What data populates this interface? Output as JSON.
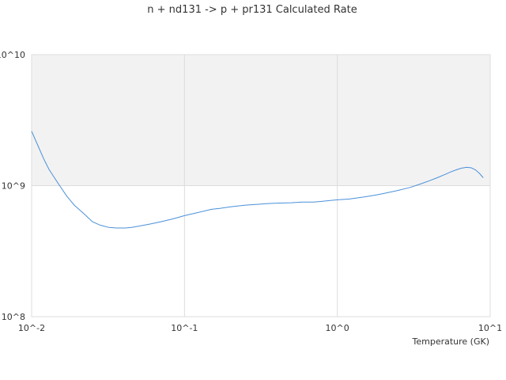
{
  "chart_data": {
    "type": "line",
    "title": "n + nd131 -> p + pr131 Calculated Rate",
    "xlabel": "Temperature (GK)",
    "ylabel": "",
    "x_scale": "log",
    "y_scale": "log",
    "xlim": [
      0.01,
      10
    ],
    "ylim": [
      100000000,
      10000000000
    ],
    "x_ticks": [
      {
        "value": 0.01,
        "label": "10^-2"
      },
      {
        "value": 0.1,
        "label": "10^-1"
      },
      {
        "value": 1,
        "label": "10^0"
      },
      {
        "value": 10,
        "label": "10^1"
      }
    ],
    "y_ticks": [
      {
        "value": 100000000,
        "label": "10^8"
      },
      {
        "value": 1000000000,
        "label": "10^9"
      },
      {
        "value": 10000000000,
        "label": "10^10"
      }
    ],
    "shaded_band": {
      "from": 1000000000,
      "to": 10000000000,
      "color": "#f2f2f2"
    },
    "grid": true,
    "legend": "none",
    "colors": {
      "line": "#4a90d9",
      "grid": "#dddddd",
      "band": "#f2f2f2"
    },
    "series": [
      {
        "x": [
          0.01,
          0.011,
          0.012,
          0.013,
          0.015,
          0.017,
          0.019,
          0.022,
          0.025,
          0.028,
          0.032,
          0.036,
          0.041,
          0.045,
          0.05,
          0.06,
          0.07,
          0.08,
          0.09,
          0.1,
          0.12,
          0.15,
          0.17,
          0.2,
          0.25,
          0.3,
          0.35,
          0.4,
          0.5,
          0.6,
          0.7,
          0.8,
          0.9,
          1.0,
          1.2,
          1.5,
          1.8,
          2.0,
          2.5,
          3.0,
          3.5,
          4.0,
          4.5,
          5.0,
          5.5,
          6.0,
          6.5,
          7.0,
          7.5,
          8.0,
          8.5,
          9.0
        ],
        "y": [
          2600000000,
          2020000000,
          1600000000,
          1330000000,
          1030000000,
          830000000,
          710000000,
          610000000,
          530000000,
          500000000,
          480000000,
          475000000,
          475000000,
          480000000,
          490000000,
          510000000,
          530000000,
          550000000,
          570000000,
          590000000,
          620000000,
          660000000,
          670000000,
          690000000,
          710000000,
          720000000,
          730000000,
          735000000,
          740000000,
          750000000,
          750000000,
          760000000,
          770000000,
          780000000,
          790000000,
          820000000,
          850000000,
          870000000,
          920000000,
          970000000,
          1030000000,
          1090000000,
          1150000000,
          1210000000,
          1270000000,
          1320000000,
          1360000000,
          1380000000,
          1370000000,
          1320000000,
          1240000000,
          1150000000
        ]
      }
    ]
  }
}
